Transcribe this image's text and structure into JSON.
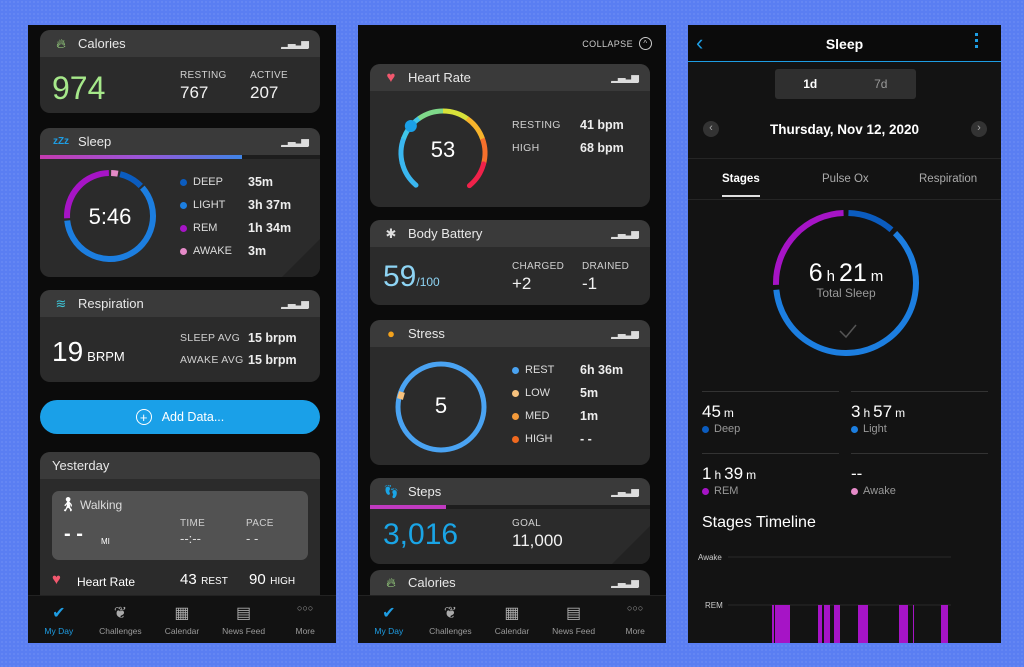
{
  "colors": {
    "accent": "#1e9de3",
    "deep": "#0b5cbf",
    "light": "#1c7ee0",
    "rem": "#a614c6",
    "awake": "#e58ac8",
    "calories": "#a6e88a",
    "body_battery": "#8ed4f4",
    "steps": "#1aa5e6",
    "stress_rest": "#4aa3f2",
    "stress_low": "#f7c27e",
    "stress_med": "#f39a3a",
    "stress_high": "#f0691f"
  },
  "tabbar": [
    {
      "label": "My Day",
      "icon": "check-icon"
    },
    {
      "label": "Challenges",
      "icon": "laurel-icon"
    },
    {
      "label": "Calendar",
      "icon": "calendar-icon"
    },
    {
      "label": "News Feed",
      "icon": "news-icon"
    },
    {
      "label": "More",
      "icon": "more-icon"
    }
  ],
  "calendar_day": "31",
  "screen1": {
    "calories": {
      "title": "Calories",
      "total": "974",
      "resting_label": "RESTING",
      "resting": "767",
      "active_label": "ACTIVE",
      "active": "207"
    },
    "sleep": {
      "title": "Sleep",
      "icon_text": "zZz",
      "total": "5:46",
      "progress": 0.72,
      "stages": [
        {
          "label": "DEEP",
          "value": "35m",
          "minutes": 35
        },
        {
          "label": "LIGHT",
          "value": "3h 37m",
          "minutes": 217
        },
        {
          "label": "REM",
          "value": "1h 34m",
          "minutes": 94
        },
        {
          "label": "AWAKE",
          "value": "3m",
          "minutes": 3
        }
      ]
    },
    "respiration": {
      "title": "Respiration",
      "value": "19",
      "unit": "BRPM",
      "sleep_avg_label": "SLEEP AVG",
      "sleep_avg": "15 brpm",
      "awake_avg_label": "AWAKE AVG",
      "awake_avg": "15 brpm"
    },
    "add_data": "Add Data...",
    "yesterday": {
      "title": "Yesterday",
      "activity": "Walking",
      "distance": "- -",
      "distance_unit": "MI",
      "time_label": "TIME",
      "time": "--:--",
      "pace_label": "PACE",
      "pace": "- -",
      "heart_rate_label": "Heart Rate",
      "rest_value": "43",
      "rest_label": "REST",
      "high_value": "90",
      "high_label": "HIGH"
    }
  },
  "screen2": {
    "collapse": "COLLAPSE",
    "heart_rate": {
      "title": "Heart Rate",
      "current": "53",
      "resting_label": "RESTING",
      "resting": "41 bpm",
      "high_label": "HIGH",
      "high": "68 bpm"
    },
    "body_battery": {
      "title": "Body Battery",
      "value": "59",
      "max": "/100",
      "charged_label": "CHARGED",
      "charged": "+2",
      "drained_label": "DRAINED",
      "drained": "-1"
    },
    "stress": {
      "title": "Stress",
      "value": "5",
      "levels": [
        {
          "label": "REST",
          "value": "6h 36m"
        },
        {
          "label": "LOW",
          "value": "5m"
        },
        {
          "label": "MED",
          "value": "1m"
        },
        {
          "label": "HIGH",
          "value": "- -"
        }
      ]
    },
    "steps": {
      "title": "Steps",
      "value": "3,016",
      "goal_label": "GOAL",
      "goal": "11,000",
      "progress": 0.27
    },
    "calories_partial": "Calories"
  },
  "screen3": {
    "title": "Sleep",
    "range": [
      "1d",
      "7d"
    ],
    "date": "Thursday, Nov 12, 2020",
    "tabs": [
      "Stages",
      "Pulse Ox",
      "Respiration"
    ],
    "total": {
      "h": "6",
      "h_unit": "h",
      "m": "21",
      "m_unit": "m",
      "label": "Total Sleep"
    },
    "stats": [
      {
        "a": "45",
        "au": "m",
        "b": "",
        "bu": "",
        "label": "Deep",
        "minutes": 45
      },
      {
        "a": "3",
        "au": "h",
        "b": "57",
        "bu": "m",
        "label": "Light",
        "minutes": 237
      },
      {
        "a": "1",
        "au": "h",
        "b": "39",
        "bu": "m",
        "label": "REM",
        "minutes": 99
      },
      {
        "a": "--",
        "au": "",
        "b": "",
        "bu": "",
        "label": "Awake",
        "minutes": 0
      }
    ],
    "timeline_title": "Stages Timeline",
    "timeline_labels": [
      "Awake",
      "REM"
    ]
  }
}
